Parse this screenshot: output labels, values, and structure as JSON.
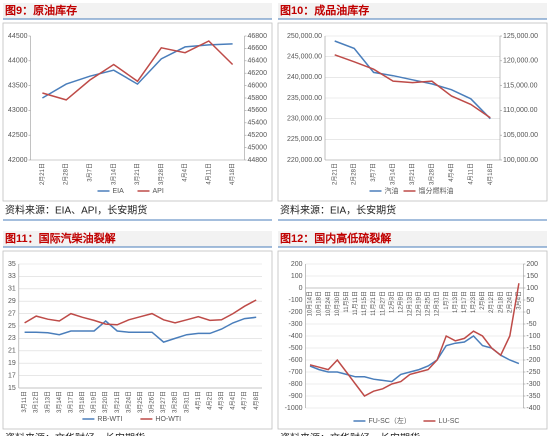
{
  "chart_data": [
    {
      "type": "line",
      "title": "图9：原油库存",
      "source": "资料来源：EIA、API，长安期货",
      "grid": false,
      "categories": [
        "2月21日",
        "2月28日",
        "3月7日",
        "3月14日",
        "3月21日",
        "3月28日",
        "4月4日",
        "4月11日",
        "4月18日"
      ],
      "ylim": [
        42000,
        44500
      ],
      "yticks": [
        42000,
        42500,
        43000,
        43500,
        44000,
        44500
      ],
      "y2lim": [
        44800,
        46800
      ],
      "y2ticks": [
        44800,
        45000,
        45200,
        45400,
        45600,
        45800,
        46000,
        46200,
        46400,
        46600,
        46800
      ],
      "series": [
        {
          "name": "EIA",
          "color": "#4a7ebb",
          "values": [
            43250,
            43530,
            43690,
            43810,
            43530,
            44040,
            44280,
            44320,
            44340
          ]
        },
        {
          "name": "API",
          "color": "#be4b48",
          "axis": "y2",
          "values": [
            45880,
            45770,
            46090,
            46340,
            46070,
            46610,
            46530,
            46720,
            46340
          ]
        }
      ]
    },
    {
      "type": "line",
      "title": "图10：成品油库存",
      "source": "资料来源：EIA，长安期货",
      "grid": true,
      "categories": [
        "2月21日",
        "2月28日",
        "3月7日",
        "3月14日",
        "3月21日",
        "3月28日",
        "4月4日",
        "4月11日",
        "4月18日"
      ],
      "ylim": [
        220000,
        250000
      ],
      "yticks": [
        {
          "value": 220000,
          "label": "220,000.00"
        },
        {
          "value": 225000,
          "label": "225,000.00"
        },
        {
          "value": 230000,
          "label": "230,000.00"
        },
        {
          "value": 235000,
          "label": "235,000.00"
        },
        {
          "value": 240000,
          "label": "240,000.00"
        },
        {
          "value": 245000,
          "label": "245,000.00"
        },
        {
          "value": 250000,
          "label": "250,000.00"
        }
      ],
      "y2lim": [
        100000,
        125000
      ],
      "y2ticks": [
        {
          "value": 100000,
          "label": "100,000.00"
        },
        {
          "value": 105000,
          "label": "105,000.00"
        },
        {
          "value": 110000,
          "label": "110,000.00"
        },
        {
          "value": 115000,
          "label": "115,000.00"
        },
        {
          "value": 120000,
          "label": "120,000.00"
        },
        {
          "value": 125000,
          "label": "125,000.00"
        }
      ],
      "series": [
        {
          "name": "汽油",
          "color": "#4a7ebb",
          "values": [
            248800,
            247000,
            241200,
            240400,
            239400,
            238400,
            237000,
            234800,
            230000
          ]
        },
        {
          "name": "馏分燃料油",
          "color": "#be4b48",
          "axis": "y2",
          "values": [
            121200,
            119800,
            118300,
            115900,
            115600,
            115900,
            112900,
            111200,
            108500
          ]
        }
      ]
    },
    {
      "type": "line",
      "title": "图11：国际汽柴油裂解",
      "source": "资料来源：文华财经，长安期货",
      "grid": true,
      "categories": [
        "3月11日",
        "3月12日",
        "3月13日",
        "3月14日",
        "3月17日",
        "3月18日",
        "3月19日",
        "3月20日",
        "3月21日",
        "3月24日",
        "3月25日",
        "3月26日",
        "3月27日",
        "3月28日",
        "3月31日",
        "4月1日",
        "4月2日",
        "4月3日",
        "4月4日",
        "4月7日",
        "4月8日"
      ],
      "ylim": [
        15,
        35
      ],
      "yticks": [
        15,
        17,
        19,
        21,
        23,
        25,
        27,
        29,
        31,
        33,
        35
      ],
      "series": [
        {
          "name": "RB-WTI",
          "color": "#4a7ebb",
          "values": [
            24,
            24,
            23.9,
            23.6,
            24.2,
            24.2,
            24.2,
            25.8,
            24.2,
            24,
            24,
            24,
            22.4,
            23,
            23.6,
            23.8,
            23.8,
            24.5,
            25.5,
            26.2,
            26.4
          ]
        },
        {
          "name": "HO-WTI",
          "color": "#be4b48",
          "values": [
            25.5,
            26.6,
            26.1,
            25.8,
            27,
            26.4,
            25.9,
            25.3,
            25.2,
            26,
            26.5,
            27,
            26,
            25.5,
            26,
            26.5,
            25.9,
            26,
            27,
            28.2,
            29.2
          ]
        }
      ]
    },
    {
      "type": "line",
      "title": "图12：国内高低硫裂解",
      "source": "资料来源：文华财经，长安期货",
      "grid": true,
      "categories": [
        "10月14日",
        "10月18日",
        "10月24日",
        "10月30日",
        "11月5日",
        "11月11日",
        "11月15日",
        "11月21日",
        "11月27日",
        "12月3日",
        "12月9日",
        "12月13日",
        "12月19日",
        "12月25日",
        "12月31日",
        "1月7日",
        "1月13日",
        "1月17日",
        "1月23日",
        "2月6日",
        "2月12日",
        "2月18日",
        "2月24日",
        "3月4日"
      ],
      "ylim": [
        -1000,
        200
      ],
      "yticks": [
        -1000,
        -900,
        -800,
        -700,
        -600,
        -500,
        -400,
        -300,
        -200,
        -100,
        0,
        100,
        200
      ],
      "y2lim": [
        -400,
        200
      ],
      "y2ticks": [
        -400,
        -350,
        -300,
        -250,
        -200,
        -150,
        -100,
        -50,
        0,
        50,
        100,
        150,
        200
      ],
      "series": [
        {
          "name": "FU-SC（左）",
          "color": "#4a7ebb",
          "values": [
            -650,
            -680,
            -700,
            -700,
            -720,
            -740,
            -740,
            -760,
            -770,
            -780,
            -720,
            -700,
            -680,
            -650,
            -600,
            -480,
            -460,
            -450,
            -400,
            -480,
            -500,
            -560,
            -600,
            -630
          ]
        },
        {
          "name": "LU-SC",
          "color": "#be4b48",
          "axis": "y2",
          "values": [
            -220,
            -230,
            -240,
            -200,
            -250,
            -300,
            -350,
            -330,
            -320,
            -300,
            -290,
            -260,
            -250,
            -240,
            -200,
            -100,
            -120,
            -110,
            -80,
            -100,
            -150,
            -180,
            -100,
            120
          ]
        }
      ]
    }
  ]
}
